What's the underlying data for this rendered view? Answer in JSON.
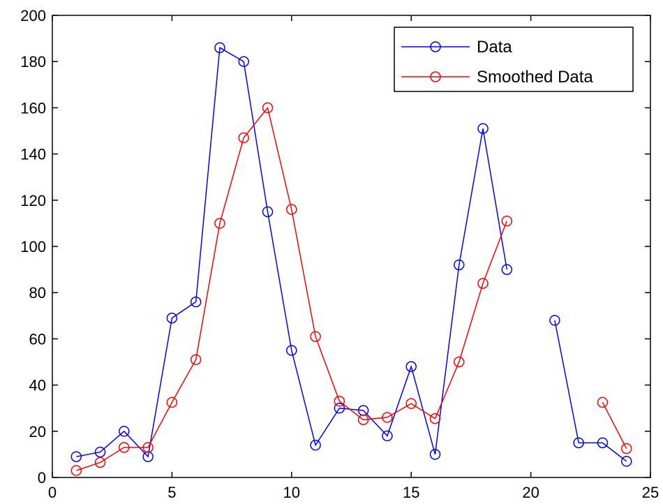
{
  "chart_data": {
    "type": "line",
    "xlim": [
      0,
      25
    ],
    "ylim": [
      0,
      200
    ],
    "x_ticks": [
      0,
      5,
      10,
      15,
      20,
      25
    ],
    "y_ticks": [
      0,
      20,
      40,
      60,
      80,
      100,
      120,
      140,
      160,
      180,
      200
    ],
    "grid": false,
    "legend_position": "top-right",
    "marker": "circle",
    "series": [
      {
        "name": "Data",
        "color": "#0000ff",
        "x": [
          1,
          2,
          3,
          4,
          5,
          6,
          7,
          8,
          9,
          10,
          11,
          12,
          13,
          14,
          15,
          16,
          17,
          18,
          19,
          20,
          21,
          22,
          23,
          24
        ],
        "y": [
          9,
          11,
          20,
          9,
          69,
          76,
          186,
          180,
          115,
          55,
          14,
          30,
          29,
          18,
          48,
          10,
          92,
          151,
          90,
          null,
          68,
          15,
          15,
          7
        ]
      },
      {
        "name": "Smoothed Data",
        "color": "#ff0000",
        "x": [
          1,
          2,
          3,
          4,
          5,
          6,
          7,
          8,
          9,
          10,
          11,
          12,
          13,
          14,
          15,
          16,
          17,
          18,
          19,
          20,
          21,
          22,
          23,
          24
        ],
        "y": [
          3,
          6.5,
          13,
          13,
          32.5,
          51,
          110,
          147,
          160,
          116,
          61,
          33,
          25,
          26,
          32,
          25.5,
          50,
          84,
          111,
          null,
          null,
          null,
          32.5,
          12.5
        ]
      }
    ]
  }
}
